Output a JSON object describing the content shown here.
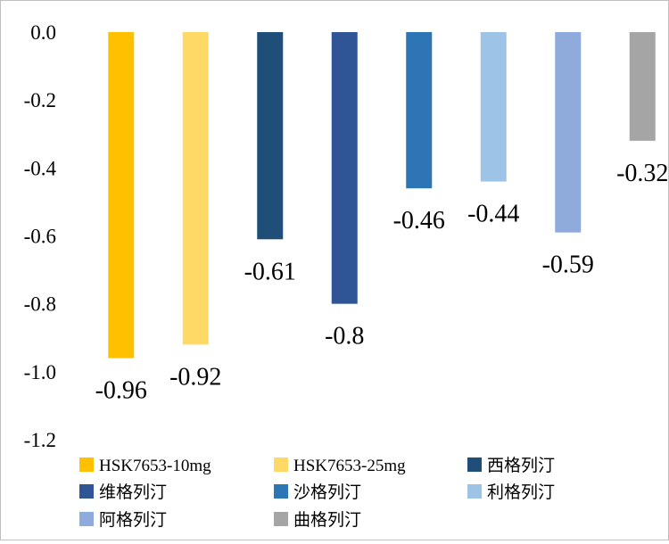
{
  "chart_data": {
    "type": "bar",
    "title": "",
    "xlabel": "",
    "ylabel": "",
    "ylim": [
      -1.2,
      0
    ],
    "y_ticks": [
      "0.0",
      "-0.2",
      "-0.4",
      "-0.6",
      "-0.8",
      "-1.0",
      "-1.2"
    ],
    "grid": false,
    "legend_position": "bottom",
    "categories": [
      "HSK7653-10mg",
      "HSK7653-25mg",
      "西格列汀",
      "维格列汀",
      "沙格列汀",
      "利格列汀",
      "阿格列汀",
      "曲格列汀"
    ],
    "values": [
      -0.96,
      -0.92,
      -0.61,
      -0.8,
      -0.46,
      -0.44,
      -0.59,
      -0.32
    ],
    "data_labels": [
      "-0.96",
      "-0.92",
      "-0.61",
      "-0.8",
      "-0.46",
      "-0.44",
      "-0.59",
      "-0.32"
    ],
    "colors": [
      "#FFC000",
      "#FFD966",
      "#1F4E79",
      "#2F5597",
      "#2E75B6",
      "#9DC3E6",
      "#8FAADC",
      "#A5A5A5"
    ]
  }
}
